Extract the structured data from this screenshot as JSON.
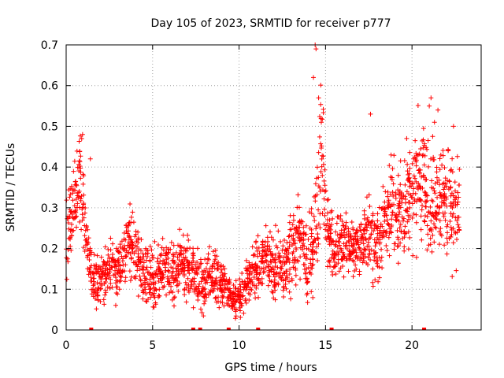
{
  "chart_data": {
    "type": "scatter",
    "title": "Day 105 of 2023, SRMTID for receiver p777",
    "xlabel": "GPS time / hours",
    "ylabel": "SRMTID / TECUs",
    "xlim": [
      0,
      24
    ],
    "ylim": [
      0,
      0.7
    ],
    "x_ticks": [
      0,
      5,
      10,
      15,
      20
    ],
    "x_tick_labels": [
      "0",
      "5",
      "10",
      "15",
      "20"
    ],
    "y_ticks": [
      0,
      0.1,
      0.2,
      0.3,
      0.4,
      0.5,
      0.6,
      0.7
    ],
    "y_tick_labels": [
      "0",
      "0.1",
      "0.2",
      "0.3",
      "0.4",
      "0.5",
      "0.6",
      "0.7"
    ],
    "grid": true,
    "marker": "plus",
    "color": "#ff0000",
    "series": [
      {
        "name": "SRMTID",
        "x": [
          0.0,
          0.25,
          0.5,
          0.75,
          1.0,
          1.25,
          1.5,
          1.75,
          2.0,
          2.25,
          2.5,
          2.75,
          3.0,
          3.25,
          3.5,
          3.75,
          4.0,
          4.25,
          4.5,
          4.75,
          5.0,
          5.25,
          5.5,
          5.75,
          6.0,
          6.25,
          6.5,
          6.75,
          7.0,
          7.25,
          7.5,
          7.75,
          8.0,
          8.25,
          8.5,
          8.75,
          9.0,
          9.25,
          9.5,
          9.75,
          10.0,
          10.25,
          10.5,
          10.75,
          11.0,
          11.25,
          11.5,
          11.75,
          12.0,
          12.25,
          12.5,
          12.75,
          13.0,
          13.25,
          13.5,
          13.75,
          14.0,
          14.25,
          14.5,
          14.75,
          15.0,
          15.25,
          15.5,
          15.75,
          16.0,
          16.25,
          16.5,
          16.75,
          17.0,
          17.25,
          17.5,
          17.75,
          18.0,
          18.25,
          18.5,
          18.75,
          19.0,
          19.25,
          19.5,
          19.75,
          20.0,
          20.25,
          20.5,
          20.75,
          21.0,
          21.25,
          21.5,
          21.75,
          22.0,
          22.25,
          22.5,
          22.75
        ],
        "y": [
          0.22,
          0.27,
          0.33,
          0.38,
          0.29,
          0.2,
          0.14,
          0.12,
          0.13,
          0.15,
          0.16,
          0.15,
          0.14,
          0.16,
          0.2,
          0.23,
          0.19,
          0.16,
          0.15,
          0.14,
          0.13,
          0.14,
          0.15,
          0.16,
          0.15,
          0.14,
          0.15,
          0.17,
          0.16,
          0.15,
          0.13,
          0.12,
          0.11,
          0.13,
          0.14,
          0.12,
          0.11,
          0.1,
          0.09,
          0.07,
          0.08,
          0.09,
          0.12,
          0.14,
          0.15,
          0.16,
          0.18,
          0.17,
          0.16,
          0.15,
          0.16,
          0.17,
          0.18,
          0.21,
          0.24,
          0.2,
          0.16,
          0.19,
          0.3,
          0.48,
          0.28,
          0.22,
          0.2,
          0.21,
          0.22,
          0.22,
          0.2,
          0.19,
          0.21,
          0.23,
          0.24,
          0.22,
          0.21,
          0.24,
          0.27,
          0.29,
          0.28,
          0.27,
          0.29,
          0.31,
          0.33,
          0.36,
          0.38,
          0.36,
          0.33,
          0.31,
          0.3,
          0.32,
          0.33,
          0.3,
          0.29,
          0.31
        ],
        "spread": [
          0.08,
          0.08,
          0.07,
          0.08,
          0.07,
          0.06,
          0.05,
          0.05,
          0.04,
          0.05,
          0.05,
          0.05,
          0.05,
          0.05,
          0.06,
          0.07,
          0.06,
          0.05,
          0.05,
          0.05,
          0.05,
          0.05,
          0.05,
          0.05,
          0.05,
          0.05,
          0.05,
          0.05,
          0.05,
          0.05,
          0.05,
          0.05,
          0.04,
          0.04,
          0.04,
          0.04,
          0.04,
          0.03,
          0.03,
          0.03,
          0.03,
          0.04,
          0.04,
          0.04,
          0.05,
          0.05,
          0.05,
          0.05,
          0.05,
          0.05,
          0.05,
          0.05,
          0.06,
          0.07,
          0.07,
          0.07,
          0.06,
          0.07,
          0.11,
          0.15,
          0.08,
          0.05,
          0.05,
          0.05,
          0.05,
          0.05,
          0.05,
          0.05,
          0.05,
          0.05,
          0.06,
          0.06,
          0.06,
          0.07,
          0.07,
          0.08,
          0.08,
          0.08,
          0.08,
          0.09,
          0.09,
          0.1,
          0.1,
          0.1,
          0.1,
          0.09,
          0.09,
          0.1,
          0.1,
          0.09,
          0.09,
          0.09
        ],
        "notable_points": [
          [
            0.9,
            0.47
          ],
          [
            0.95,
            0.48
          ],
          [
            1.4,
            0.42
          ],
          [
            14.4,
            0.7
          ],
          [
            14.45,
            0.69
          ],
          [
            14.3,
            0.62
          ],
          [
            14.6,
            0.57
          ],
          [
            17.6,
            0.53
          ],
          [
            21.0,
            0.55
          ],
          [
            21.1,
            0.57
          ],
          [
            21.5,
            0.54
          ],
          [
            21.3,
            0.51
          ],
          [
            22.4,
            0.5
          ]
        ]
      }
    ],
    "zero_markers_x": [
      1.45,
      7.35,
      7.75,
      9.4,
      11.1,
      15.35,
      20.7
    ]
  }
}
